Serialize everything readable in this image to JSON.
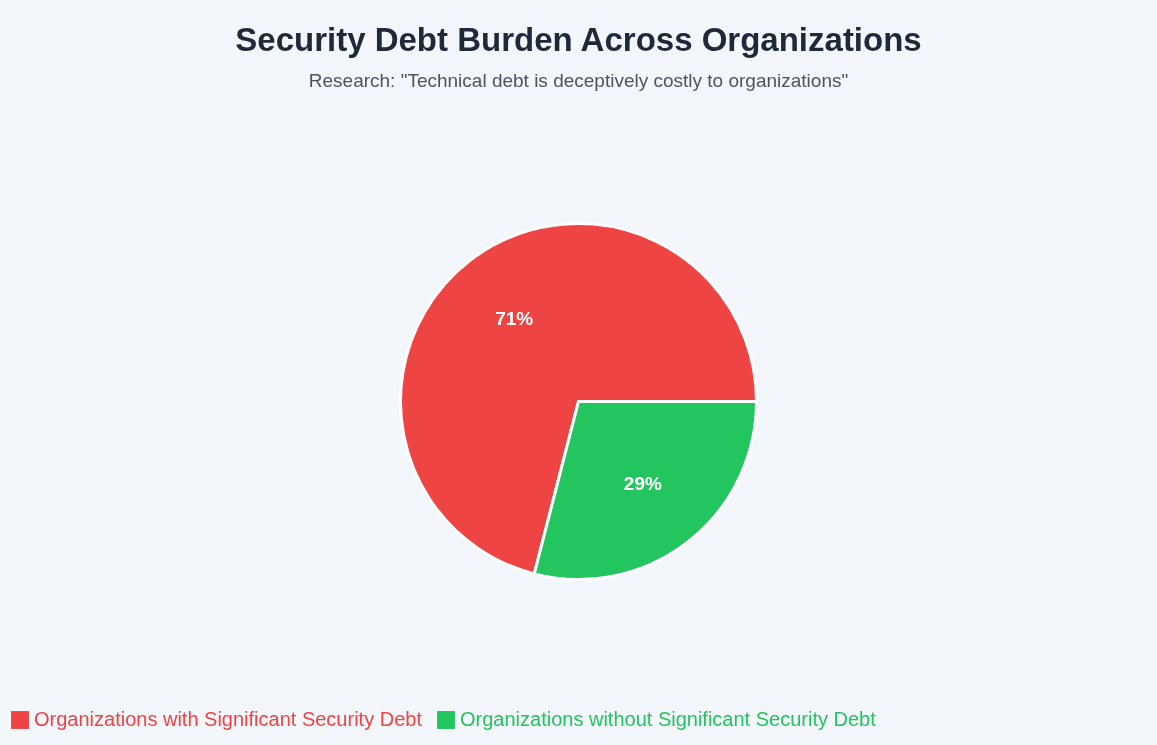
{
  "chart_data": {
    "type": "pie",
    "title": "Security Debt Burden Across Organizations",
    "subtitle": "Research: \"Technical debt is deceptively costly to organizations\"",
    "categories": [
      "Organizations with Significant Security Debt",
      "Organizations without Significant Security Debt"
    ],
    "values": [
      71,
      29
    ],
    "colors": [
      "#ef4444",
      "#22c55e"
    ],
    "value_labels": [
      "71%",
      "29%"
    ],
    "legend": "bottom"
  }
}
